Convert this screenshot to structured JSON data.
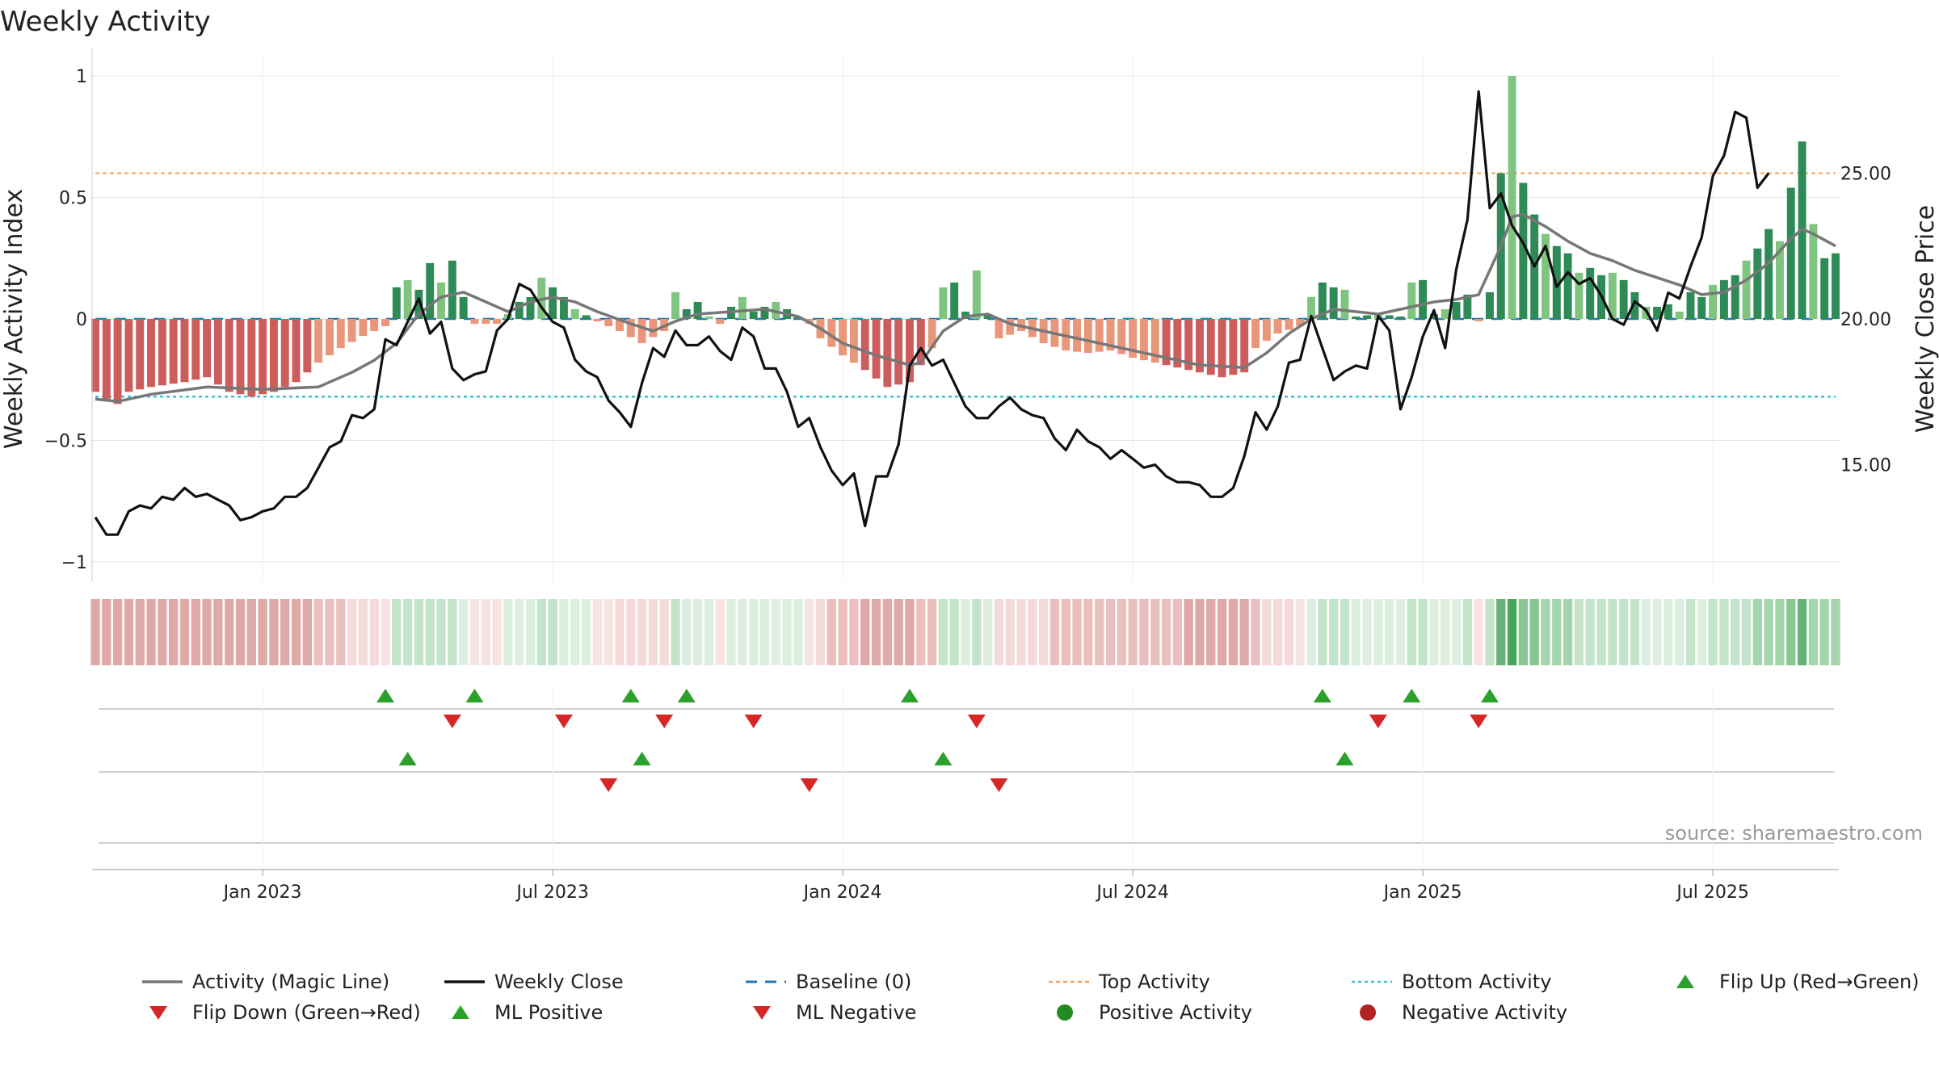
{
  "chart_data": {
    "type": "bar",
    "title": "Weekly Activity",
    "ylabel_left": "Weekly Activity Index",
    "ylabel_right": "Weekly Close Price",
    "source": "source: sharemaestro.com",
    "y_left_ticks": [
      {
        "value": 1,
        "label": "1"
      },
      {
        "value": 0.5,
        "label": "0.5"
      },
      {
        "value": 0,
        "label": "0"
      },
      {
        "value": -0.5,
        "label": "−0.5"
      },
      {
        "value": -1,
        "label": "−1"
      }
    ],
    "y_right_ticks": [
      {
        "value": 25,
        "label": "25.00"
      },
      {
        "value": 20,
        "label": "20.00"
      },
      {
        "value": 15,
        "label": "15.00"
      }
    ],
    "ylim_left": [
      -1.08,
      1.08
    ],
    "ylim_right": [
      11.0,
      29.0
    ],
    "x_ticks": [
      {
        "week": 15,
        "label": "Jan 2023"
      },
      {
        "week": 41,
        "label": "Jul 2023"
      },
      {
        "week": 67,
        "label": "Jan 2024"
      },
      {
        "week": 93,
        "label": "Jul 2024"
      },
      {
        "week": 119,
        "label": "Jan 2025"
      },
      {
        "week": 145,
        "label": "Jul 2025"
      }
    ],
    "top_activity": 0.6,
    "bottom_activity": -0.32,
    "baseline": 0,
    "activity_anchors": [
      [
        0,
        -0.3
      ],
      [
        1,
        -0.33
      ],
      [
        2,
        -0.35
      ],
      [
        3,
        -0.3
      ],
      [
        5,
        -0.28
      ],
      [
        8,
        -0.26
      ],
      [
        10,
        -0.24
      ],
      [
        12,
        -0.3
      ],
      [
        14,
        -0.32
      ],
      [
        16,
        -0.3
      ],
      [
        18,
        -0.26
      ],
      [
        20,
        -0.18
      ],
      [
        22,
        -0.12
      ],
      [
        24,
        -0.07
      ],
      [
        26,
        -0.03
      ],
      [
        27,
        0.13
      ],
      [
        28,
        0.16
      ],
      [
        29,
        0.12
      ],
      [
        30,
        0.23
      ],
      [
        31,
        0.15
      ],
      [
        32,
        0.24
      ],
      [
        33,
        0.09
      ],
      [
        34,
        -0.02
      ],
      [
        36,
        -0.02
      ],
      [
        37,
        0.02
      ],
      [
        38,
        0.07
      ],
      [
        39,
        0.09
      ],
      [
        40,
        0.17
      ],
      [
        41,
        0.13
      ],
      [
        42,
        0.09
      ],
      [
        43,
        0.04
      ],
      [
        45,
        -0.01
      ],
      [
        47,
        -0.05
      ],
      [
        49,
        -0.1
      ],
      [
        51,
        -0.05
      ],
      [
        52,
        0.11
      ],
      [
        53,
        0.04
      ],
      [
        54,
        0.07
      ],
      [
        55,
        0.01
      ],
      [
        56,
        -0.02
      ],
      [
        57,
        0.05
      ],
      [
        58,
        0.09
      ],
      [
        59,
        0.03
      ],
      [
        60,
        0.05
      ],
      [
        61,
        0.07
      ],
      [
        62,
        0.04
      ],
      [
        63,
        0.01
      ],
      [
        64,
        -0.02
      ],
      [
        65,
        -0.08
      ],
      [
        67,
        -0.15
      ],
      [
        69,
        -0.21
      ],
      [
        71,
        -0.28
      ],
      [
        73,
        -0.26
      ],
      [
        75,
        -0.12
      ],
      [
        76,
        0.13
      ],
      [
        77,
        0.15
      ],
      [
        78,
        0.03
      ],
      [
        79,
        0.2
      ],
      [
        80,
        0.02
      ],
      [
        81,
        -0.08
      ],
      [
        83,
        -0.05
      ],
      [
        85,
        -0.1
      ],
      [
        87,
        -0.13
      ],
      [
        89,
        -0.14
      ],
      [
        91,
        -0.13
      ],
      [
        93,
        -0.16
      ],
      [
        95,
        -0.18
      ],
      [
        97,
        -0.2
      ],
      [
        99,
        -0.22
      ],
      [
        101,
        -0.24
      ],
      [
        103,
        -0.22
      ],
      [
        104,
        -0.12
      ],
      [
        106,
        -0.06
      ],
      [
        108,
        -0.03
      ],
      [
        109,
        0.09
      ],
      [
        110,
        0.15
      ],
      [
        111,
        0.13
      ],
      [
        112,
        0.12
      ],
      [
        113,
        0.01
      ],
      [
        115,
        0.02
      ],
      [
        117,
        0.01
      ],
      [
        118,
        0.15
      ],
      [
        119,
        0.16
      ],
      [
        120,
        0.02
      ],
      [
        121,
        0.04
      ],
      [
        122,
        0.07
      ],
      [
        123,
        0.1
      ],
      [
        124,
        -0.01
      ],
      [
        125,
        0.11
      ],
      [
        126,
        0.6
      ],
      [
        127,
        1.0
      ],
      [
        128,
        0.56
      ],
      [
        129,
        0.43
      ],
      [
        130,
        0.35
      ],
      [
        131,
        0.3
      ],
      [
        132,
        0.27
      ],
      [
        133,
        0.19
      ],
      [
        134,
        0.21
      ],
      [
        135,
        0.18
      ],
      [
        136,
        0.19
      ],
      [
        137,
        0.16
      ],
      [
        138,
        0.11
      ],
      [
        139,
        0.05
      ],
      [
        140,
        0.05
      ],
      [
        141,
        0.06
      ],
      [
        142,
        0.03
      ],
      [
        143,
        0.11
      ],
      [
        144,
        0.09
      ],
      [
        145,
        0.14
      ],
      [
        146,
        0.16
      ],
      [
        147,
        0.18
      ],
      [
        148,
        0.24
      ],
      [
        149,
        0.29
      ],
      [
        150,
        0.37
      ],
      [
        151,
        0.32
      ],
      [
        152,
        0.54
      ],
      [
        153,
        0.73
      ],
      [
        154,
        0.39
      ],
      [
        155,
        0.25
      ],
      [
        156,
        0.27
      ]
    ],
    "magic_line_anchors": [
      [
        0,
        -0.33
      ],
      [
        2,
        -0.34
      ],
      [
        5,
        -0.31
      ],
      [
        10,
        -0.28
      ],
      [
        15,
        -0.29
      ],
      [
        20,
        -0.28
      ],
      [
        23,
        -0.22
      ],
      [
        25,
        -0.17
      ],
      [
        27,
        -0.1
      ],
      [
        29,
        0.02
      ],
      [
        31,
        0.09
      ],
      [
        33,
        0.11
      ],
      [
        35,
        0.07
      ],
      [
        37,
        0.03
      ],
      [
        39,
        0.07
      ],
      [
        41,
        0.09
      ],
      [
        43,
        0.07
      ],
      [
        45,
        0.03
      ],
      [
        48,
        -0.02
      ],
      [
        50,
        -0.05
      ],
      [
        52,
        -0.01
      ],
      [
        54,
        0.02
      ],
      [
        57,
        0.03
      ],
      [
        60,
        0.04
      ],
      [
        63,
        0.01
      ],
      [
        65,
        -0.04
      ],
      [
        67,
        -0.1
      ],
      [
        70,
        -0.15
      ],
      [
        73,
        -0.19
      ],
      [
        74,
        -0.18
      ],
      [
        76,
        -0.05
      ],
      [
        78,
        0.01
      ],
      [
        80,
        0.02
      ],
      [
        82,
        -0.02
      ],
      [
        84,
        -0.04
      ],
      [
        87,
        -0.07
      ],
      [
        90,
        -0.1
      ],
      [
        93,
        -0.13
      ],
      [
        96,
        -0.16
      ],
      [
        99,
        -0.19
      ],
      [
        103,
        -0.2
      ],
      [
        105,
        -0.14
      ],
      [
        107,
        -0.06
      ],
      [
        109,
        0.0
      ],
      [
        111,
        0.04
      ],
      [
        113,
        0.03
      ],
      [
        115,
        0.02
      ],
      [
        118,
        0.05
      ],
      [
        120,
        0.07
      ],
      [
        122,
        0.08
      ],
      [
        124,
        0.1
      ],
      [
        126,
        0.3
      ],
      [
        127,
        0.42
      ],
      [
        128,
        0.43
      ],
      [
        130,
        0.38
      ],
      [
        132,
        0.32
      ],
      [
        134,
        0.27
      ],
      [
        136,
        0.24
      ],
      [
        138,
        0.2
      ],
      [
        140,
        0.17
      ],
      [
        142,
        0.14
      ],
      [
        144,
        0.1
      ],
      [
        146,
        0.11
      ],
      [
        148,
        0.16
      ],
      [
        150,
        0.23
      ],
      [
        152,
        0.33
      ],
      [
        153,
        0.37
      ],
      [
        154,
        0.35
      ],
      [
        156,
        0.3
      ]
    ],
    "close_anchors": [
      [
        0,
        13.2
      ],
      [
        1,
        12.6
      ],
      [
        2,
        12.6
      ],
      [
        3,
        13.4
      ],
      [
        4,
        13.6
      ],
      [
        5,
        13.5
      ],
      [
        6,
        13.9
      ],
      [
        7,
        13.8
      ],
      [
        8,
        14.2
      ],
      [
        9,
        13.9
      ],
      [
        10,
        14.0
      ],
      [
        11,
        13.8
      ],
      [
        12,
        13.6
      ],
      [
        13,
        13.1
      ],
      [
        14,
        13.2
      ],
      [
        15,
        13.4
      ],
      [
        16,
        13.5
      ],
      [
        17,
        13.9
      ],
      [
        18,
        13.9
      ],
      [
        19,
        14.2
      ],
      [
        20,
        14.9
      ],
      [
        21,
        15.6
      ],
      [
        22,
        15.8
      ],
      [
        23,
        16.7
      ],
      [
        24,
        16.6
      ],
      [
        25,
        16.9
      ],
      [
        26,
        19.3
      ],
      [
        27,
        19.1
      ],
      [
        28,
        19.9
      ],
      [
        29,
        20.7
      ],
      [
        30,
        19.5
      ],
      [
        31,
        19.9
      ],
      [
        32,
        18.3
      ],
      [
        33,
        17.9
      ],
      [
        34,
        18.1
      ],
      [
        35,
        18.2
      ],
      [
        36,
        19.6
      ],
      [
        37,
        20.0
      ],
      [
        38,
        21.2
      ],
      [
        39,
        21.0
      ],
      [
        40,
        20.4
      ],
      [
        41,
        19.9
      ],
      [
        42,
        19.7
      ],
      [
        43,
        18.6
      ],
      [
        44,
        18.2
      ],
      [
        45,
        18.0
      ],
      [
        46,
        17.2
      ],
      [
        47,
        16.8
      ],
      [
        48,
        16.3
      ],
      [
        49,
        17.8
      ],
      [
        50,
        19.0
      ],
      [
        51,
        18.7
      ],
      [
        52,
        19.6
      ],
      [
        53,
        19.1
      ],
      [
        54,
        19.1
      ],
      [
        55,
        19.4
      ],
      [
        56,
        18.9
      ],
      [
        57,
        18.6
      ],
      [
        58,
        19.7
      ],
      [
        59,
        19.4
      ],
      [
        60,
        18.3
      ],
      [
        61,
        18.3
      ],
      [
        62,
        17.5
      ],
      [
        63,
        16.3
      ],
      [
        64,
        16.6
      ],
      [
        65,
        15.6
      ],
      [
        66,
        14.8
      ],
      [
        67,
        14.3
      ],
      [
        68,
        14.7
      ],
      [
        69,
        12.9
      ],
      [
        70,
        14.6
      ],
      [
        71,
        14.6
      ],
      [
        72,
        15.7
      ],
      [
        73,
        18.4
      ],
      [
        74,
        19.0
      ],
      [
        75,
        18.4
      ],
      [
        76,
        18.6
      ],
      [
        77,
        17.8
      ],
      [
        78,
        17.0
      ],
      [
        79,
        16.6
      ],
      [
        80,
        16.6
      ],
      [
        81,
        17.0
      ],
      [
        82,
        17.3
      ],
      [
        83,
        16.9
      ],
      [
        84,
        16.7
      ],
      [
        85,
        16.6
      ],
      [
        86,
        15.9
      ],
      [
        87,
        15.5
      ],
      [
        88,
        16.2
      ],
      [
        89,
        15.8
      ],
      [
        90,
        15.6
      ],
      [
        91,
        15.2
      ],
      [
        92,
        15.5
      ],
      [
        93,
        15.2
      ],
      [
        94,
        14.9
      ],
      [
        95,
        15.0
      ],
      [
        96,
        14.6
      ],
      [
        97,
        14.4
      ],
      [
        98,
        14.4
      ],
      [
        99,
        14.3
      ],
      [
        100,
        13.9
      ],
      [
        101,
        13.9
      ],
      [
        102,
        14.2
      ],
      [
        103,
        15.3
      ],
      [
        104,
        16.8
      ],
      [
        105,
        16.2
      ],
      [
        106,
        17.0
      ],
      [
        107,
        18.5
      ],
      [
        108,
        18.6
      ],
      [
        109,
        20.1
      ],
      [
        110,
        19.0
      ],
      [
        111,
        17.9
      ],
      [
        112,
        18.2
      ],
      [
        113,
        18.4
      ],
      [
        114,
        18.3
      ],
      [
        115,
        20.1
      ],
      [
        116,
        19.6
      ],
      [
        117,
        16.9
      ],
      [
        118,
        18.0
      ],
      [
        119,
        19.4
      ],
      [
        120,
        20.3
      ],
      [
        121,
        19.0
      ],
      [
        122,
        21.7
      ],
      [
        123,
        23.4
      ],
      [
        124,
        27.8
      ],
      [
        125,
        23.8
      ],
      [
        126,
        24.3
      ],
      [
        127,
        23.2
      ],
      [
        128,
        22.6
      ],
      [
        129,
        21.8
      ],
      [
        130,
        22.5
      ],
      [
        131,
        21.1
      ],
      [
        132,
        21.6
      ],
      [
        133,
        21.2
      ],
      [
        134,
        21.4
      ],
      [
        135,
        20.8
      ],
      [
        136,
        20.0
      ],
      [
        137,
        19.8
      ],
      [
        138,
        20.6
      ],
      [
        139,
        20.3
      ],
      [
        140,
        19.6
      ],
      [
        141,
        20.9
      ],
      [
        142,
        20.7
      ],
      [
        143,
        21.8
      ],
      [
        144,
        22.8
      ],
      [
        145,
        24.9
      ],
      [
        146,
        25.6
      ],
      [
        147,
        27.1
      ],
      [
        148,
        26.9
      ],
      [
        149,
        24.5
      ],
      [
        150,
        25.0
      ]
    ],
    "strip_colors": [
      "#dfa9a7",
      "#e9c0bd",
      "#f4dbd9",
      "#f7e4e2",
      "#dcefdf",
      "#c4e4c9",
      "#a4d6ad",
      "#86c792",
      "#66b276",
      "#4aa35b"
    ],
    "flip_up_weeks": [
      26,
      34,
      48,
      53,
      73,
      110,
      118,
      125
    ],
    "flip_down_weeks": [
      32,
      42,
      51,
      59,
      79,
      115,
      124
    ],
    "ml_positive_weeks": [
      28,
      49,
      76,
      112
    ],
    "ml_negative_weeks": [
      46,
      64,
      81
    ],
    "legend": [
      {
        "key": "magic",
        "label": "Activity (Magic Line)"
      },
      {
        "key": "close",
        "label": "Weekly Close"
      },
      {
        "key": "baseline",
        "label": "Baseline (0)"
      },
      {
        "key": "top",
        "label": "Top Activity"
      },
      {
        "key": "bottom",
        "label": "Bottom Activity"
      },
      {
        "key": "flipup",
        "label": "Flip Up (Red→Green)"
      },
      {
        "key": "flipdown",
        "label": "Flip Down (Green→Red)"
      },
      {
        "key": "mlpos",
        "label": "ML Positive"
      },
      {
        "key": "mlneg",
        "label": "ML Negative"
      },
      {
        "key": "posact",
        "label": "Positive Activity"
      },
      {
        "key": "negact",
        "label": "Negative Activity"
      }
    ],
    "colors": {
      "pos_dark": "#2e8b57",
      "pos_light": "#7fc47f",
      "neg_dark": "#cd5c5c",
      "neg_light": "#e9967a",
      "magic": "#777777",
      "close": "#111111",
      "baseline": "#1f77b4",
      "top": "#f4a460",
      "bottom": "#40c0d0",
      "marker_green": "#2ca02c",
      "marker_red": "#d62728",
      "pos_dot": "#228b22",
      "neg_dot": "#b22222",
      "grid": "#e6e6e6"
    }
  }
}
